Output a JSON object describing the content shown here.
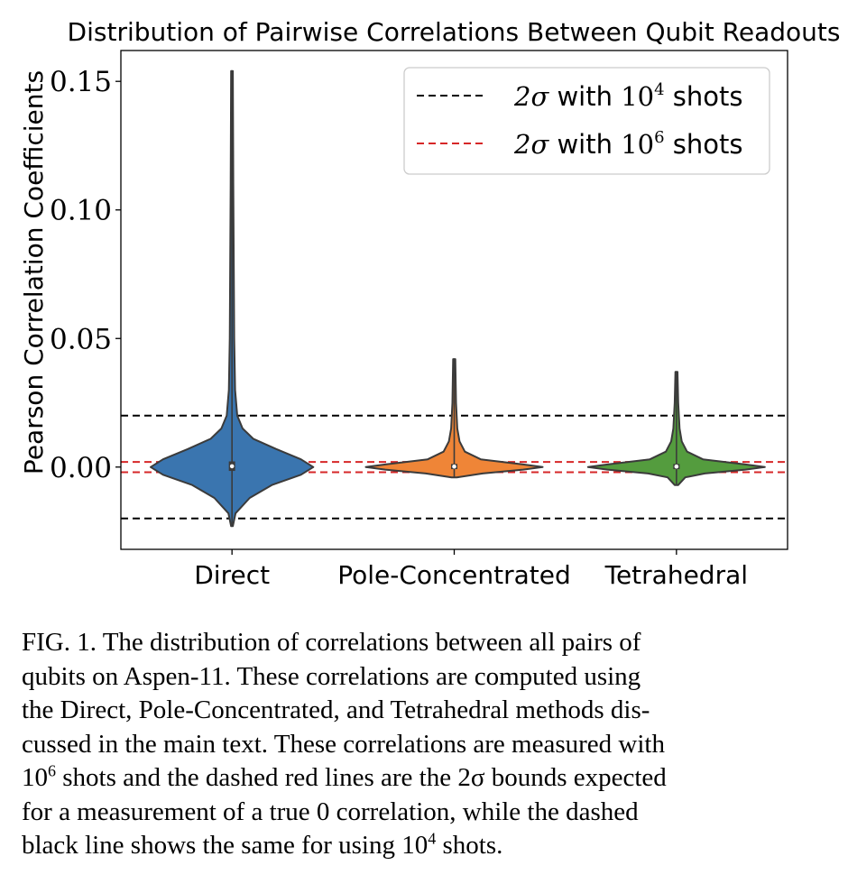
{
  "chart_data": {
    "type": "violin",
    "title": "Distribution of Pairwise Correlations Between Qubit Readouts",
    "ylabel": "Pearson Correlation Coefficients",
    "xlabel": "",
    "categories": [
      "Direct",
      "Pole-Concentrated",
      "Tetrahedral"
    ],
    "ylim": [
      -0.032,
      0.162
    ],
    "yticks": [
      0.0,
      0.05,
      0.1,
      0.15
    ],
    "ytick_labels": [
      "0.00",
      "0.05",
      "0.10",
      "0.15"
    ],
    "grid": false,
    "legend_position": "top-right",
    "violins": [
      {
        "name": "Direct",
        "color": "#3a75af",
        "min": -0.023,
        "max": 0.154,
        "q1": -0.0015,
        "median": 0.0003,
        "q3": 0.0022,
        "profile": [
          [
            -0.023,
            0.01
          ],
          [
            -0.018,
            0.04
          ],
          [
            -0.012,
            0.2
          ],
          [
            -0.007,
            0.45
          ],
          [
            -0.003,
            0.78
          ],
          [
            0.0,
            0.92
          ],
          [
            0.003,
            0.78
          ],
          [
            0.007,
            0.5
          ],
          [
            0.011,
            0.24
          ],
          [
            0.015,
            0.12
          ],
          [
            0.02,
            0.06
          ],
          [
            0.03,
            0.035
          ],
          [
            0.05,
            0.025
          ],
          [
            0.08,
            0.02
          ],
          [
            0.11,
            0.015
          ],
          [
            0.154,
            0.01
          ]
        ]
      },
      {
        "name": "Pole-Concentrated",
        "color": "#ef8537",
        "min": -0.004,
        "max": 0.042,
        "q1": -0.0008,
        "median": 0.0002,
        "q3": 0.0012,
        "profile": [
          [
            -0.004,
            0.03
          ],
          [
            -0.0025,
            0.32
          ],
          [
            -0.001,
            0.78
          ],
          [
            0.0,
            1.0
          ],
          [
            0.001,
            0.78
          ],
          [
            0.003,
            0.3
          ],
          [
            0.006,
            0.12
          ],
          [
            0.01,
            0.06
          ],
          [
            0.015,
            0.035
          ],
          [
            0.025,
            0.02
          ],
          [
            0.042,
            0.012
          ]
        ]
      },
      {
        "name": "Tetrahedral",
        "color": "#549c3e",
        "min": -0.007,
        "max": 0.037,
        "q1": -0.0008,
        "median": 0.0002,
        "q3": 0.0012,
        "profile": [
          [
            -0.007,
            0.02
          ],
          [
            -0.004,
            0.1
          ],
          [
            -0.0025,
            0.32
          ],
          [
            -0.001,
            0.78
          ],
          [
            0.0,
            1.0
          ],
          [
            0.001,
            0.78
          ],
          [
            0.003,
            0.3
          ],
          [
            0.006,
            0.12
          ],
          [
            0.01,
            0.06
          ],
          [
            0.015,
            0.035
          ],
          [
            0.025,
            0.02
          ],
          [
            0.037,
            0.012
          ]
        ]
      }
    ],
    "hlines": [
      {
        "name": "2σ with 10^4 shots",
        "y": 0.02,
        "color": "#000000"
      },
      {
        "name": "2σ with 10^4 shots",
        "y": -0.02,
        "color": "#000000"
      },
      {
        "name": "2σ with 10^6 shots",
        "y": 0.002,
        "color": "#d62728"
      },
      {
        "name": "2σ with 10^6 shots",
        "y": -0.002,
        "color": "#d62728"
      }
    ],
    "legend": [
      {
        "sym": "2σ",
        "text": " with ",
        "base": "10",
        "exp": "4",
        "tail": " shots",
        "color": "#000000"
      },
      {
        "sym": "2σ",
        "text": " with ",
        "base": "10",
        "exp": "6",
        "tail": " shots",
        "color": "#d62728"
      }
    ]
  },
  "caption": {
    "line1": "FIG. 1.  The distribution of correlations between all pairs of",
    "line2": "qubits on Aspen-11.  These correlations are computed using",
    "line3": "the Direct, Pole-Concentrated, and Tetrahedral methods dis-",
    "line4": "cussed in the main text.  These correlations are measured with",
    "line5a": "10",
    "line5sup": "6",
    "line5b": " shots and the dashed red lines are the 2σ bounds expected",
    "line6": "for a measurement of a true 0 correlation, while the dashed",
    "line7a": "black line shows the same for using 10",
    "line7sup": "4",
    "line7b": " shots."
  }
}
